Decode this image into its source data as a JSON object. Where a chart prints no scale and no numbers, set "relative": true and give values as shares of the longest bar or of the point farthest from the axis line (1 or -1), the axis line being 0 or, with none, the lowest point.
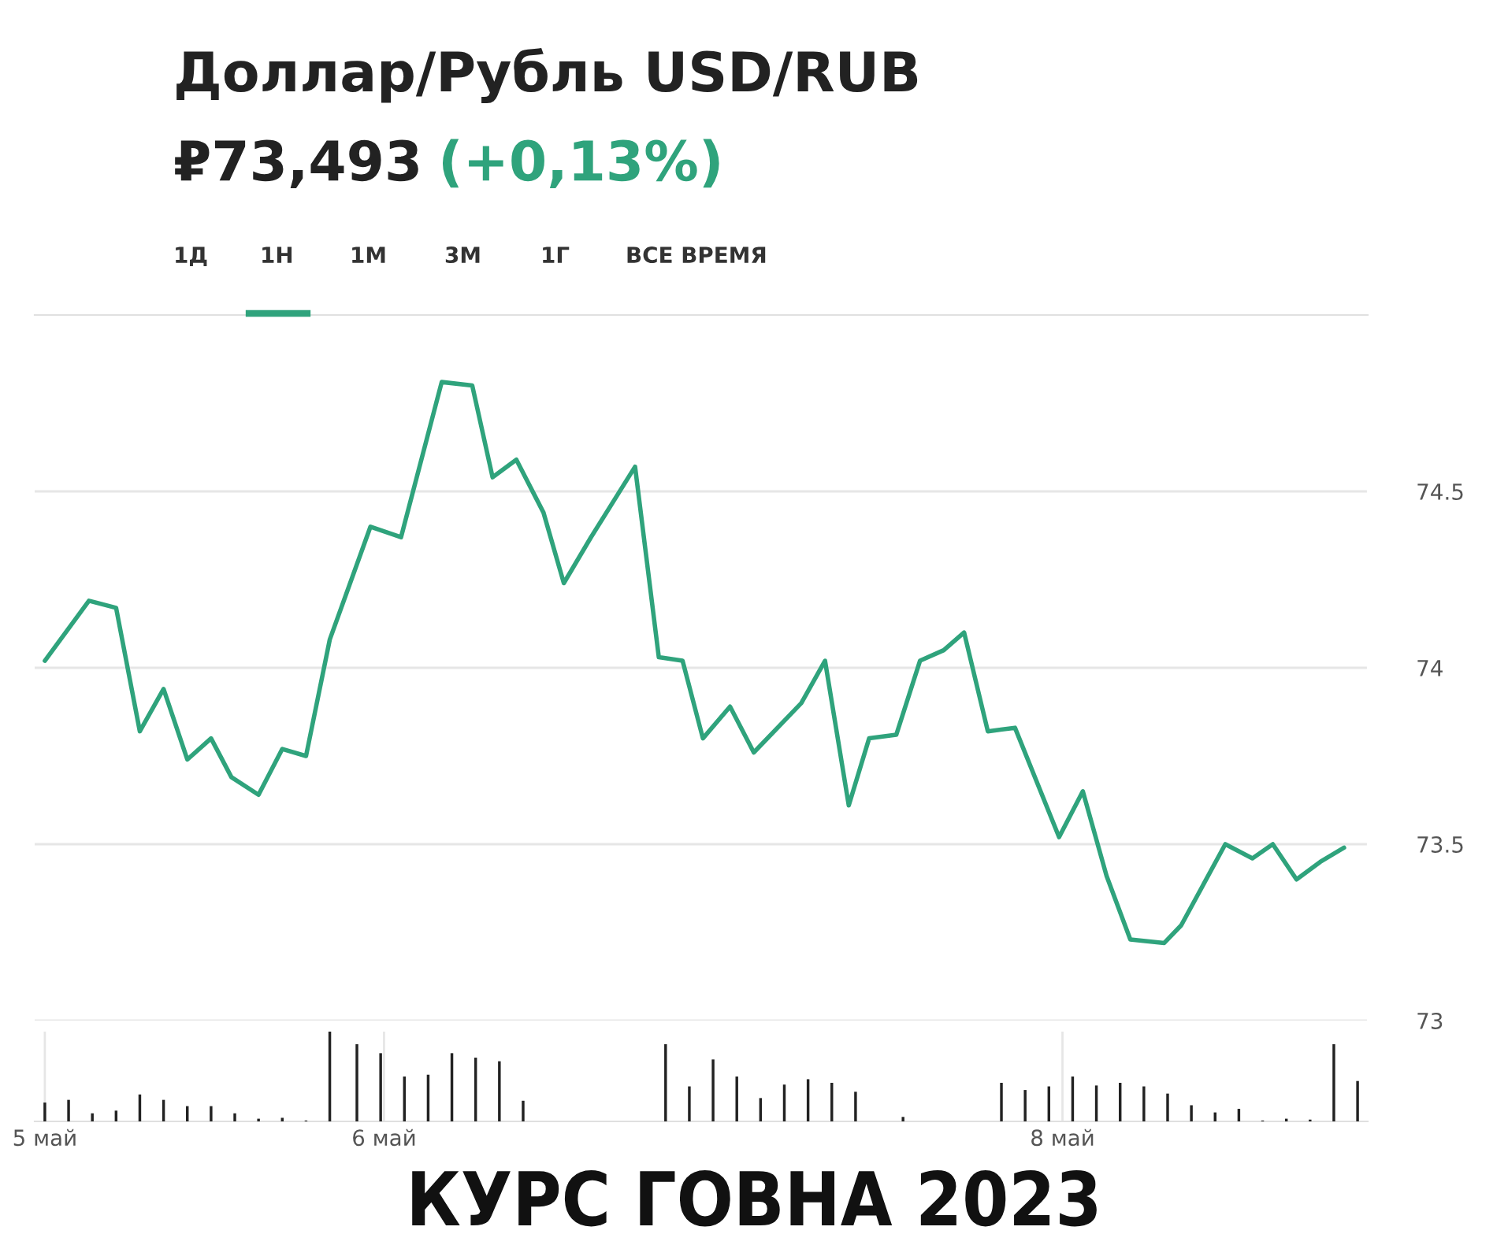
{
  "chart_data": [
    {
      "type": "line",
      "title": "Доллар/Рубль USD/RUB",
      "subtitle": "₽73,493",
      "annotations": [
        "(+0,13%)",
        "1Д",
        "1Н",
        "1М",
        "3М",
        "1Г",
        "ВСЕ ВРЕМЯ",
        "КУРС ГОВНА 2023"
      ],
      "x": [
        5.0,
        5.13,
        5.21,
        5.28,
        5.35,
        5.42,
        5.49,
        5.55,
        5.63,
        5.7,
        5.77,
        5.84,
        5.96,
        6.05,
        6.17,
        6.26,
        6.32,
        6.39,
        6.47,
        6.53,
        6.61,
        6.74,
        6.81,
        6.88,
        6.94,
        7.02,
        7.09,
        7.23,
        7.3,
        7.37,
        7.43,
        7.51,
        7.58,
        7.65,
        7.71,
        7.78,
        7.86,
        7.99,
        8.06,
        8.13,
        8.2,
        8.3,
        8.35,
        8.48,
        8.56,
        8.62,
        8.69,
        8.76,
        8.83
      ],
      "series": [
        {
          "color": "#2fa37c",
          "values": [
            74.02,
            74.19,
            74.17,
            73.82,
            73.94,
            73.74,
            73.8,
            73.69,
            73.64,
            73.77,
            73.75,
            74.08,
            74.4,
            74.37,
            74.81,
            74.8,
            74.54,
            74.59,
            74.44,
            74.24,
            74.37,
            74.57,
            74.03,
            74.02,
            73.8,
            73.89,
            73.76,
            73.9,
            74.02,
            73.61,
            73.8,
            73.81,
            74.02,
            74.05,
            74.1,
            73.82,
            73.83,
            73.52,
            73.65,
            73.41,
            73.23,
            73.22,
            73.27,
            73.5,
            73.46,
            73.5,
            73.4,
            73.45,
            73.49
          ]
        }
      ],
      "xlim": [
        4.97,
        8.9
      ],
      "ylim": [
        73,
        75
      ],
      "yticks": [
        73,
        73.5,
        74,
        74.5
      ],
      "tick_labels": "y",
      "grid": "y",
      "marker": "none",
      "line_style": "solid"
    },
    {
      "type": "bar",
      "relative": true,
      "grid": "x",
      "x": [
        5.0,
        5.07,
        5.14,
        5.21,
        5.28,
        5.35,
        5.42,
        5.49,
        5.56,
        5.63,
        5.7,
        5.77,
        5.84,
        5.92,
        5.99,
        6.06,
        6.13,
        6.2,
        6.27,
        6.34,
        6.41,
        6.48,
        6.55,
        6.62,
        6.69,
        6.76,
        6.83,
        6.9,
        6.97,
        7.04,
        7.11,
        7.18,
        7.25,
        7.32,
        7.39,
        7.46,
        7.53,
        7.6,
        7.68,
        7.75,
        7.82,
        7.89,
        7.96,
        8.03,
        8.1,
        8.17,
        8.24,
        8.31,
        8.38,
        8.45,
        8.52,
        8.59,
        8.66,
        8.73,
        8.8,
        8.87
      ],
      "series": [
        {
          "color": "#222222",
          "values": [
            0.21,
            0.24,
            0.09,
            0.12,
            0.3,
            0.24,
            0.17,
            0.17,
            0.09,
            0.03,
            0.04,
            0.01,
            1,
            0.86,
            0.76,
            0.5,
            0.52,
            0.76,
            0.71,
            0.67,
            0.23,
            null,
            null,
            null,
            null,
            null,
            0.86,
            0.39,
            0.69,
            0.5,
            0.26,
            0.41,
            0.47,
            0.43,
            0.33,
            null,
            0.05,
            null,
            null,
            null,
            0.43,
            0.35,
            0.39,
            0.5,
            0.4,
            0.43,
            0.39,
            0.31,
            0.18,
            0.1,
            0.14,
            0.01,
            0.03,
            0.02,
            0.86,
            0.45
          ]
        }
      ],
      "xlim": [
        4.97,
        8.9
      ],
      "xticks": [
        {
          "value": 5,
          "label": "5 май"
        },
        {
          "value": 6,
          "label": "6 май"
        },
        {
          "value": 8,
          "label": "8 май"
        }
      ],
      "tick_labels": "x"
    }
  ]
}
